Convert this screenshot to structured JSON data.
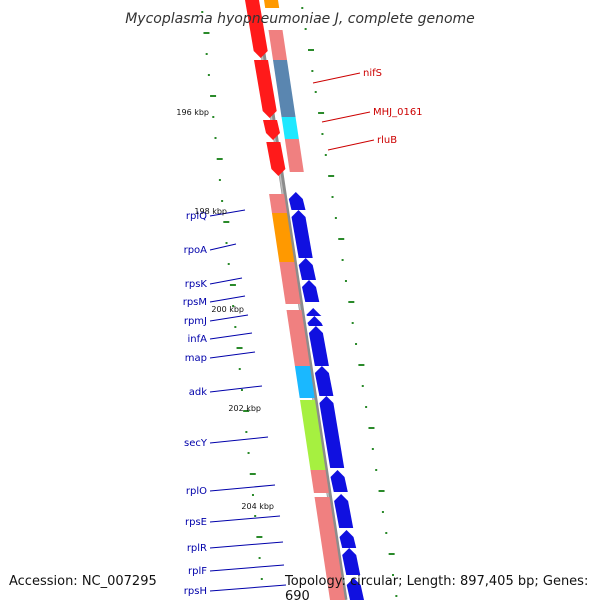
{
  "title": "Mycoplasma hyopneumoniae J, complete genome",
  "footer": {
    "accession": "Accession: NC_007295",
    "topology": "Topology: circular; Length: 897,405 bp; Genes: 690"
  },
  "colors": {
    "backbone": "#8c8c8c",
    "tick": "#2a8a2a",
    "gene_red": "#ff1a1a",
    "gene_pink": "#f08080",
    "gene_blue": "#1010e0",
    "gene_orange": "#ff9900",
    "gene_steel": "#5a86b0",
    "gene_cyan": "#1ee8ff",
    "gene_lightblue": "#1ab8ff",
    "gene_lime": "#a6f040",
    "label_red": "#cc0000",
    "label_blue": "#0000aa"
  },
  "position_ticks": [
    {
      "label": "196 kbp"
    },
    {
      "label": "198 kbp"
    },
    {
      "label": "200 kbp"
    },
    {
      "label": "202 kbp"
    },
    {
      "label": "204 kbp"
    }
  ],
  "gene_labels_right": [
    {
      "name": "nifS"
    },
    {
      "name": "MHJ_0161"
    },
    {
      "name": "rluB"
    }
  ],
  "gene_labels_left": [
    {
      "name": "rplQ"
    },
    {
      "name": "rpoA"
    },
    {
      "name": "rpsK"
    },
    {
      "name": "rpsM"
    },
    {
      "name": "rpmJ"
    },
    {
      "name": "infA"
    },
    {
      "name": "map"
    },
    {
      "name": "adk"
    },
    {
      "name": "secY"
    },
    {
      "name": "rplO"
    },
    {
      "name": "rpsE"
    },
    {
      "name": "rplR"
    },
    {
      "name": "rplF"
    },
    {
      "name": "rpsH"
    }
  ]
}
